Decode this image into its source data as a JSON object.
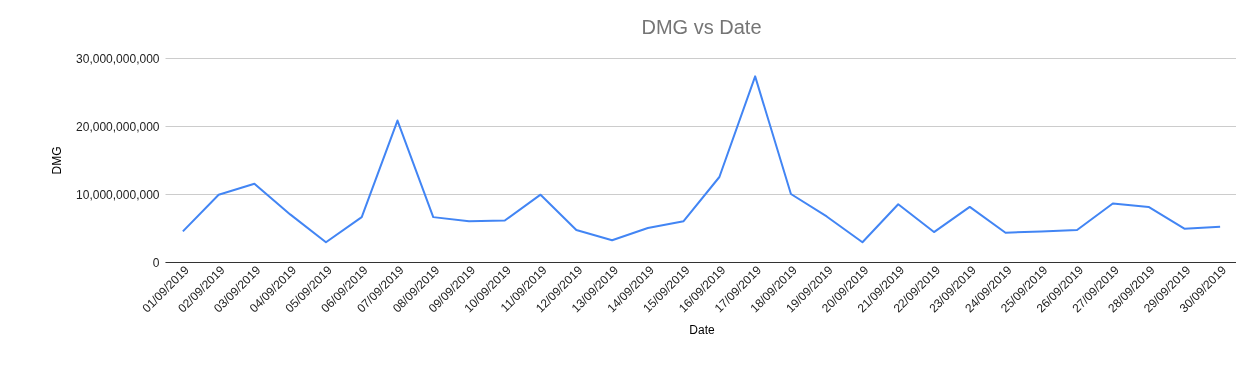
{
  "chart_data": {
    "type": "line",
    "title": "DMG vs Date",
    "xlabel": "Date",
    "ylabel": "DMG",
    "categories": [
      "01/09/2019",
      "02/09/2019",
      "03/09/2019",
      "04/09/2019",
      "05/09/2019",
      "06/09/2019",
      "07/09/2019",
      "08/09/2019",
      "09/09/2019",
      "10/09/2019",
      "11/09/2019",
      "12/09/2019",
      "13/09/2019",
      "14/09/2019",
      "15/09/2019",
      "16/09/2019",
      "17/09/2019",
      "18/09/2019",
      "19/09/2019",
      "20/09/2019",
      "21/09/2019",
      "22/09/2019",
      "23/09/2019",
      "24/09/2019",
      "25/09/2019",
      "26/09/2019",
      "27/09/2019",
      "28/09/2019",
      "29/09/2019",
      "30/09/2019"
    ],
    "series": [
      {
        "color": "#4285f4",
        "values": [
          4500000000,
          9900000000,
          11500000000,
          7000000000,
          2900000000,
          6600000000,
          20800000000,
          6600000000,
          6000000000,
          6100000000,
          9900000000,
          4700000000,
          3200000000,
          5000000000,
          6000000000,
          12500000000,
          27300000000,
          10000000000,
          6700000000,
          2900000000,
          8500000000,
          4400000000,
          8100000000,
          4300000000,
          4500000000,
          4700000000,
          8600000000,
          8100000000,
          4900000000,
          5200000000
        ]
      }
    ],
    "ylim": [
      0,
      30000000000
    ],
    "yticks": [
      0,
      {
        "value": 10000000000,
        "label": "10,000,000,000"
      },
      {
        "value": 20000000000,
        "label": "20,000,000,000"
      },
      {
        "value": 30000000000,
        "label": "30,000,000,000"
      }
    ],
    "grid": "y",
    "legend": false,
    "marker": "none",
    "line_style": "solid"
  }
}
